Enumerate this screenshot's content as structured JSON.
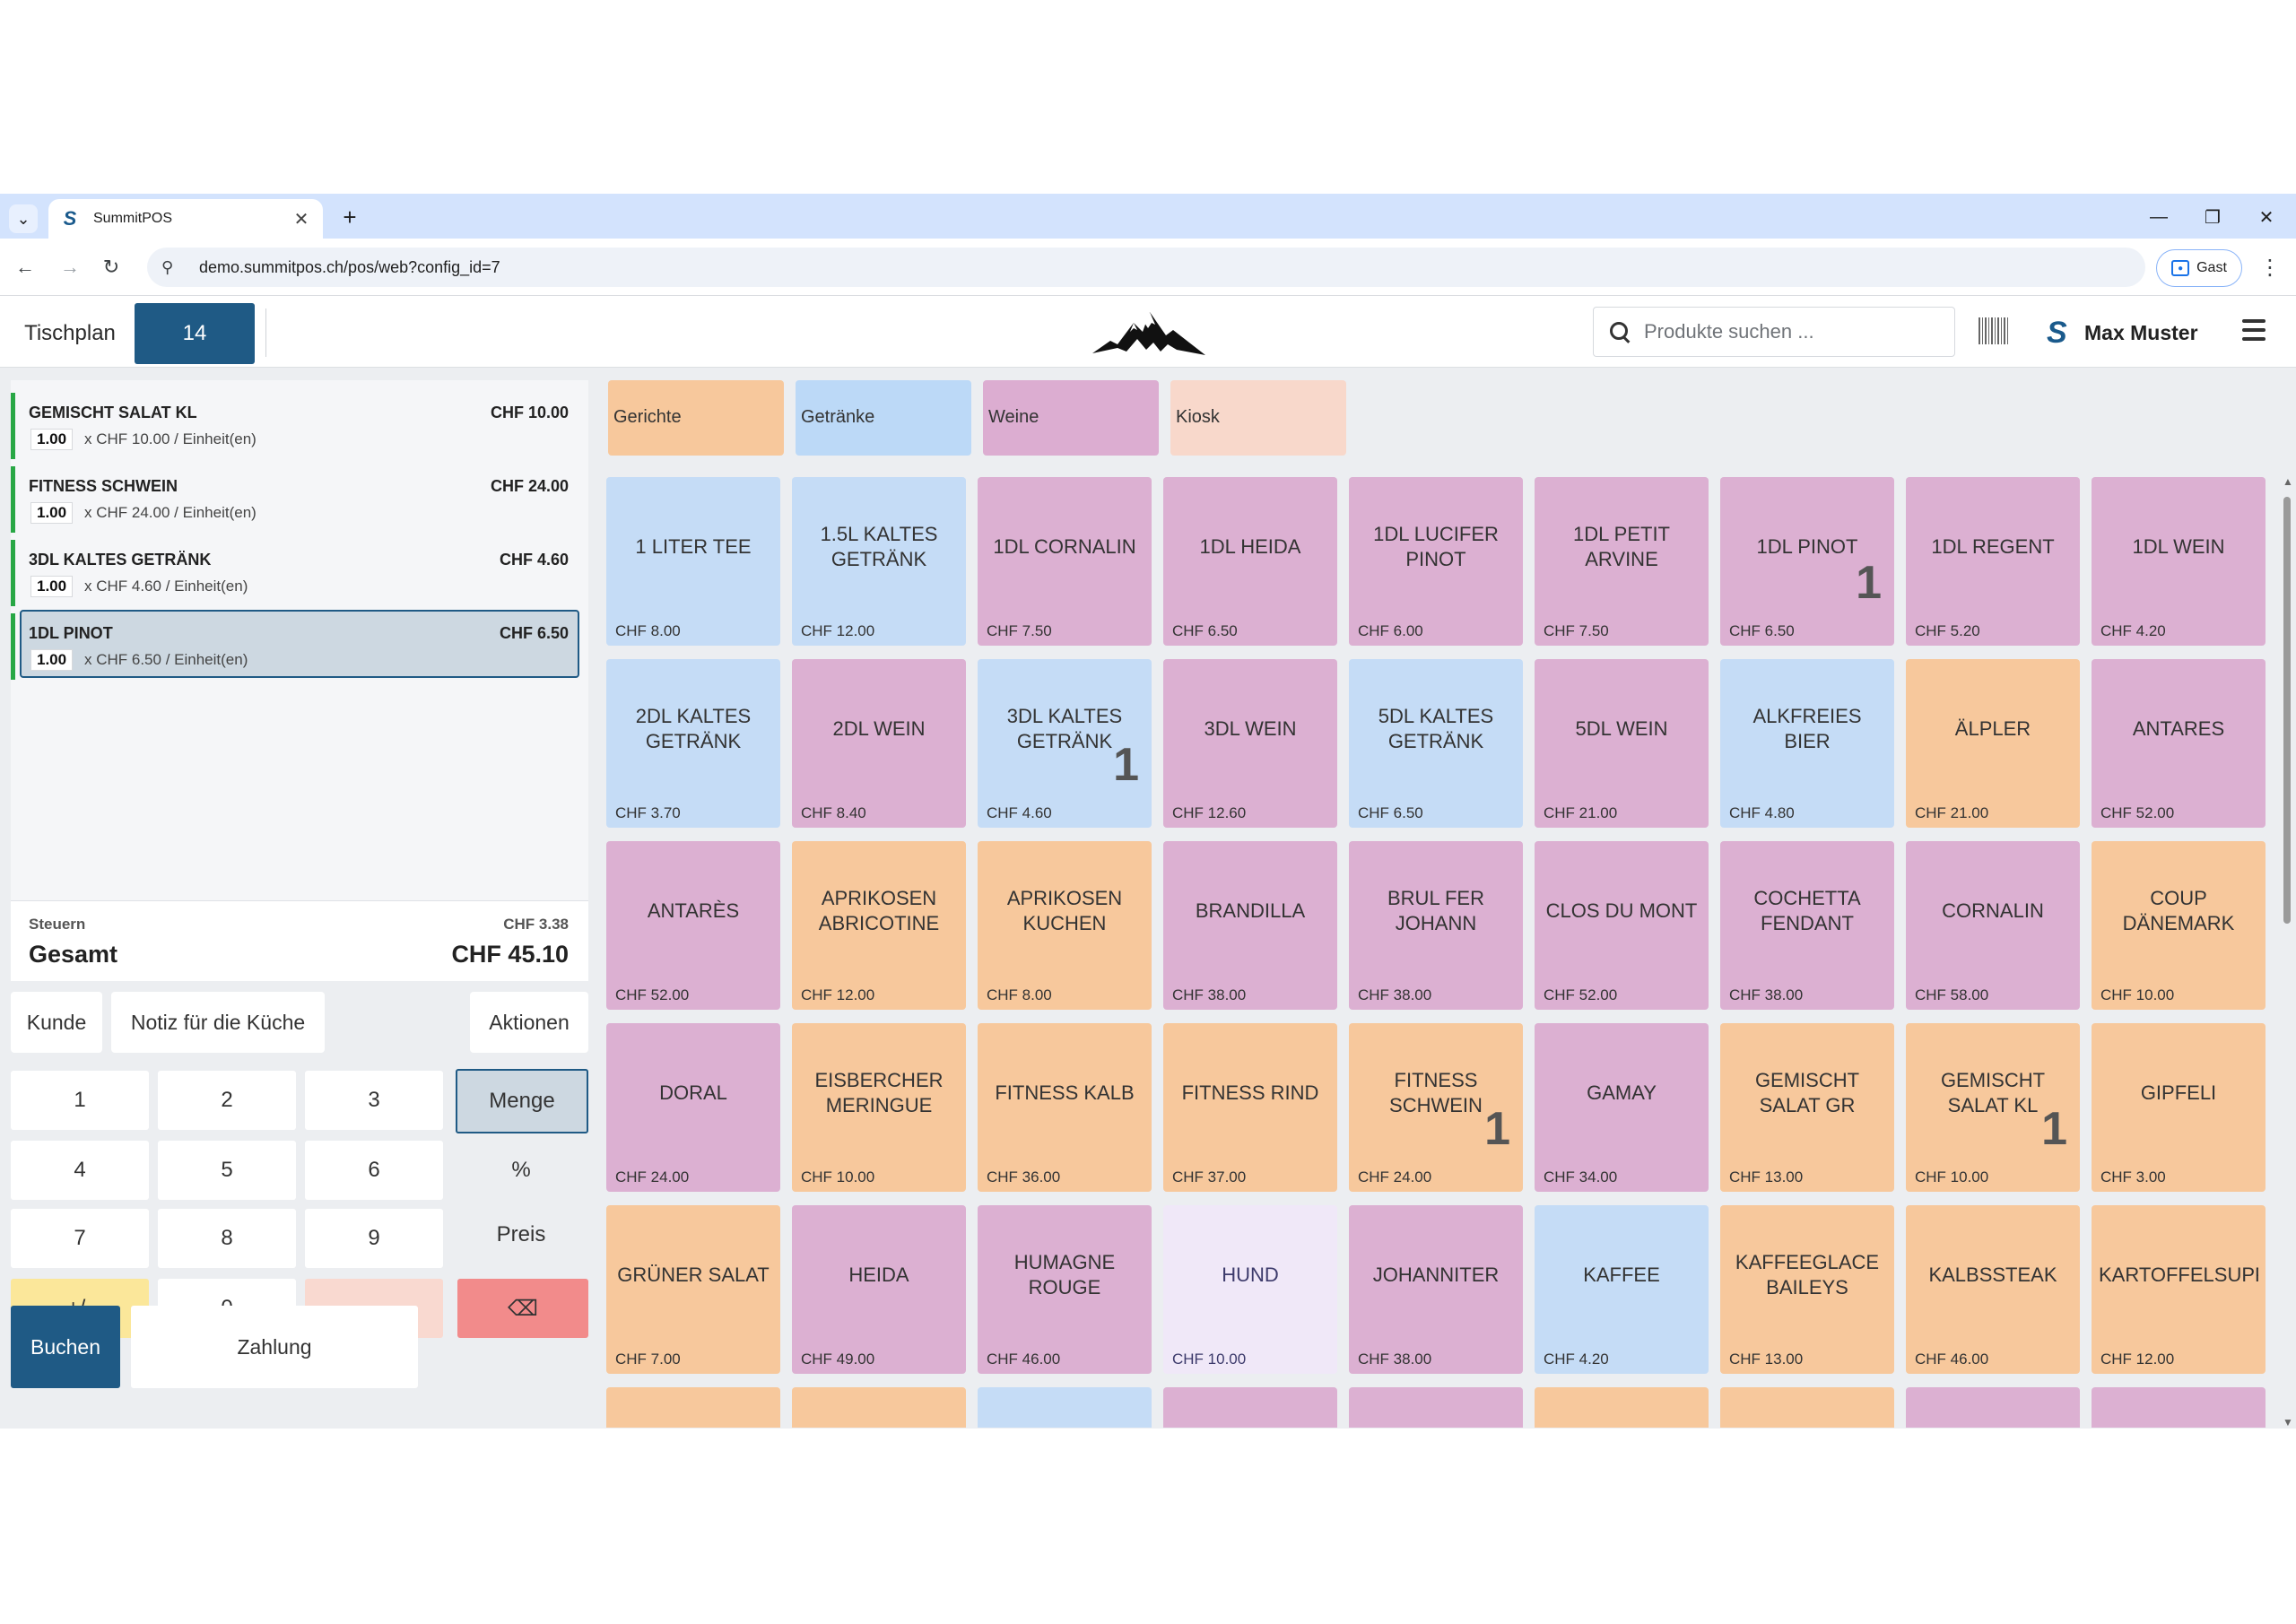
{
  "browser": {
    "tab_title": "SummitPOS",
    "url": "demo.summitpos.ch/pos/web?config_id=7",
    "guest_label": "Gast"
  },
  "header": {
    "tischplan": "Tischplan",
    "table_number": "14",
    "search_placeholder": "Produkte suchen ...",
    "user_name": "Max Muster"
  },
  "order": {
    "lines": [
      {
        "name": "GEMISCHT SALAT KL",
        "price": "CHF 10.00",
        "qty": "1.00",
        "unit": "x CHF 10.00 / Einheit(en)"
      },
      {
        "name": "FITNESS SCHWEIN",
        "price": "CHF 24.00",
        "qty": "1.00",
        "unit": "x CHF 24.00 / Einheit(en)"
      },
      {
        "name": "3DL KALTES GETRÄNK",
        "price": "CHF 4.60",
        "qty": "1.00",
        "unit": "x CHF 4.60 / Einheit(en)"
      },
      {
        "name": "1DL PINOT",
        "price": "CHF 6.50",
        "qty": "1.00",
        "unit": "x CHF 6.50 / Einheit(en)"
      }
    ],
    "tax_label": "Steuern",
    "tax_value": "CHF 3.38",
    "total_label": "Gesamt",
    "total_value": "CHF 45.10"
  },
  "actions": {
    "kunde": "Kunde",
    "notiz": "Notiz für die Küche",
    "aktionen": "Aktionen"
  },
  "numpad": {
    "k1": "1",
    "k2": "2",
    "k3": "3",
    "menge": "Menge",
    "k4": "4",
    "k5": "5",
    "k6": "6",
    "percent": "%",
    "k7": "7",
    "k8": "8",
    "k9": "9",
    "preis": "Preis",
    "plusminus": "+/-",
    "k0": "0",
    "dot": ".",
    "backspace": "⌫"
  },
  "footer": {
    "buchen": "Buchen",
    "zahlung": "Zahlung"
  },
  "categories": [
    {
      "label": "Gerichte",
      "color": "#f7c89c"
    },
    {
      "label": "Getränke",
      "color": "#bcd9f7"
    },
    {
      "label": "Weine",
      "color": "#dcadd1"
    },
    {
      "label": "Kiosk",
      "color": "#f8d8cb"
    }
  ],
  "colors": {
    "food": "#f7c89c",
    "drink": "#c5dcf6",
    "wine": "#dcb0d2",
    "kiosk": "#f0e8f8",
    "accent": "#1f5a85"
  },
  "products": [
    {
      "name": "1 LITER TEE",
      "price": "CHF 8.00",
      "kind": "drink",
      "qty": ""
    },
    {
      "name": "1.5L KALTES GETRÄNK",
      "price": "CHF 12.00",
      "kind": "drink",
      "qty": ""
    },
    {
      "name": "1DL CORNALIN",
      "price": "CHF 7.50",
      "kind": "wine",
      "qty": ""
    },
    {
      "name": "1DL HEIDA",
      "price": "CHF 6.50",
      "kind": "wine",
      "qty": ""
    },
    {
      "name": "1DL LUCIFER PINOT",
      "price": "CHF 6.00",
      "kind": "wine",
      "qty": ""
    },
    {
      "name": "1DL PETIT ARVINE",
      "price": "CHF 7.50",
      "kind": "wine",
      "qty": ""
    },
    {
      "name": "1DL PINOT",
      "price": "CHF 6.50",
      "kind": "wine",
      "qty": "1"
    },
    {
      "name": "1DL REGENT",
      "price": "CHF 5.20",
      "kind": "wine",
      "qty": ""
    },
    {
      "name": "1DL WEIN",
      "price": "CHF 4.20",
      "kind": "wine",
      "qty": ""
    },
    {
      "name": "2DL KALTES GETRÄNK",
      "price": "CHF 3.70",
      "kind": "drink",
      "qty": ""
    },
    {
      "name": "2DL WEIN",
      "price": "CHF 8.40",
      "kind": "wine",
      "qty": ""
    },
    {
      "name": "3DL KALTES GETRÄNK",
      "price": "CHF 4.60",
      "kind": "drink",
      "qty": "1"
    },
    {
      "name": "3DL WEIN",
      "price": "CHF 12.60",
      "kind": "wine",
      "qty": ""
    },
    {
      "name": "5DL KALTES GETRÄNK",
      "price": "CHF 6.50",
      "kind": "drink",
      "qty": ""
    },
    {
      "name": "5DL WEIN",
      "price": "CHF 21.00",
      "kind": "wine",
      "qty": ""
    },
    {
      "name": "ALKFREIES BIER",
      "price": "CHF 4.80",
      "kind": "drink",
      "qty": ""
    },
    {
      "name": "ÄLPLER",
      "price": "CHF 21.00",
      "kind": "food",
      "qty": ""
    },
    {
      "name": "ANTARES",
      "price": "CHF 52.00",
      "kind": "wine",
      "qty": ""
    },
    {
      "name": "ANTARÈS",
      "price": "CHF 52.00",
      "kind": "wine",
      "qty": ""
    },
    {
      "name": "APRIKOSEN ABRICOTINE",
      "price": "CHF 12.00",
      "kind": "food",
      "qty": ""
    },
    {
      "name": "APRIKOSEN KUCHEN",
      "price": "CHF 8.00",
      "kind": "food",
      "qty": ""
    },
    {
      "name": "BRANDILLA",
      "price": "CHF 38.00",
      "kind": "wine",
      "qty": ""
    },
    {
      "name": "BRUL FER JOHANN",
      "price": "CHF 38.00",
      "kind": "wine",
      "qty": ""
    },
    {
      "name": "CLOS DU MONT",
      "price": "CHF 52.00",
      "kind": "wine",
      "qty": ""
    },
    {
      "name": "COCHETTA FENDANT",
      "price": "CHF 38.00",
      "kind": "wine",
      "qty": ""
    },
    {
      "name": "CORNALIN",
      "price": "CHF 58.00",
      "kind": "wine",
      "qty": ""
    },
    {
      "name": "COUP DÄNEMARK",
      "price": "CHF 10.00",
      "kind": "food",
      "qty": ""
    },
    {
      "name": "DORAL",
      "price": "CHF 24.00",
      "kind": "wine",
      "qty": ""
    },
    {
      "name": "EISBERCHER MERINGUE",
      "price": "CHF 10.00",
      "kind": "food",
      "qty": ""
    },
    {
      "name": "FITNESS KALB",
      "price": "CHF 36.00",
      "kind": "food",
      "qty": ""
    },
    {
      "name": "FITNESS RIND",
      "price": "CHF 37.00",
      "kind": "food",
      "qty": ""
    },
    {
      "name": "FITNESS SCHWEIN",
      "price": "CHF 24.00",
      "kind": "food",
      "qty": "1"
    },
    {
      "name": "GAMAY",
      "price": "CHF 34.00",
      "kind": "wine",
      "qty": ""
    },
    {
      "name": "GEMISCHT SALAT GR",
      "price": "CHF 13.00",
      "kind": "food",
      "qty": ""
    },
    {
      "name": "GEMISCHT SALAT KL",
      "price": "CHF 10.00",
      "kind": "food",
      "qty": "1"
    },
    {
      "name": "GIPFELI",
      "price": "CHF 3.00",
      "kind": "food",
      "qty": ""
    },
    {
      "name": "GRÜNER SALAT",
      "price": "CHF 7.00",
      "kind": "food",
      "qty": ""
    },
    {
      "name": "HEIDA",
      "price": "CHF 49.00",
      "kind": "wine",
      "qty": ""
    },
    {
      "name": "HUMAGNE ROUGE",
      "price": "CHF 46.00",
      "kind": "wine",
      "qty": ""
    },
    {
      "name": "HUND",
      "price": "CHF 10.00",
      "kind": "kiosk",
      "qty": ""
    },
    {
      "name": "JOHANNITER",
      "price": "CHF 38.00",
      "kind": "wine",
      "qty": ""
    },
    {
      "name": "KAFFEE",
      "price": "CHF 4.20",
      "kind": "drink",
      "qty": ""
    },
    {
      "name": "KAFFEEGLACE BAILEYS",
      "price": "CHF 13.00",
      "kind": "food",
      "qty": ""
    },
    {
      "name": "KALBSSTEAK",
      "price": "CHF 46.00",
      "kind": "food",
      "qty": ""
    },
    {
      "name": "KARTOFFELSUPPE",
      "price": "CHF 12.00",
      "kind": "food",
      "qty": ""
    }
  ],
  "partial_row_kinds": [
    "food",
    "food",
    "drink",
    "wine",
    "wine",
    "food",
    "food",
    "wine",
    "wine"
  ]
}
